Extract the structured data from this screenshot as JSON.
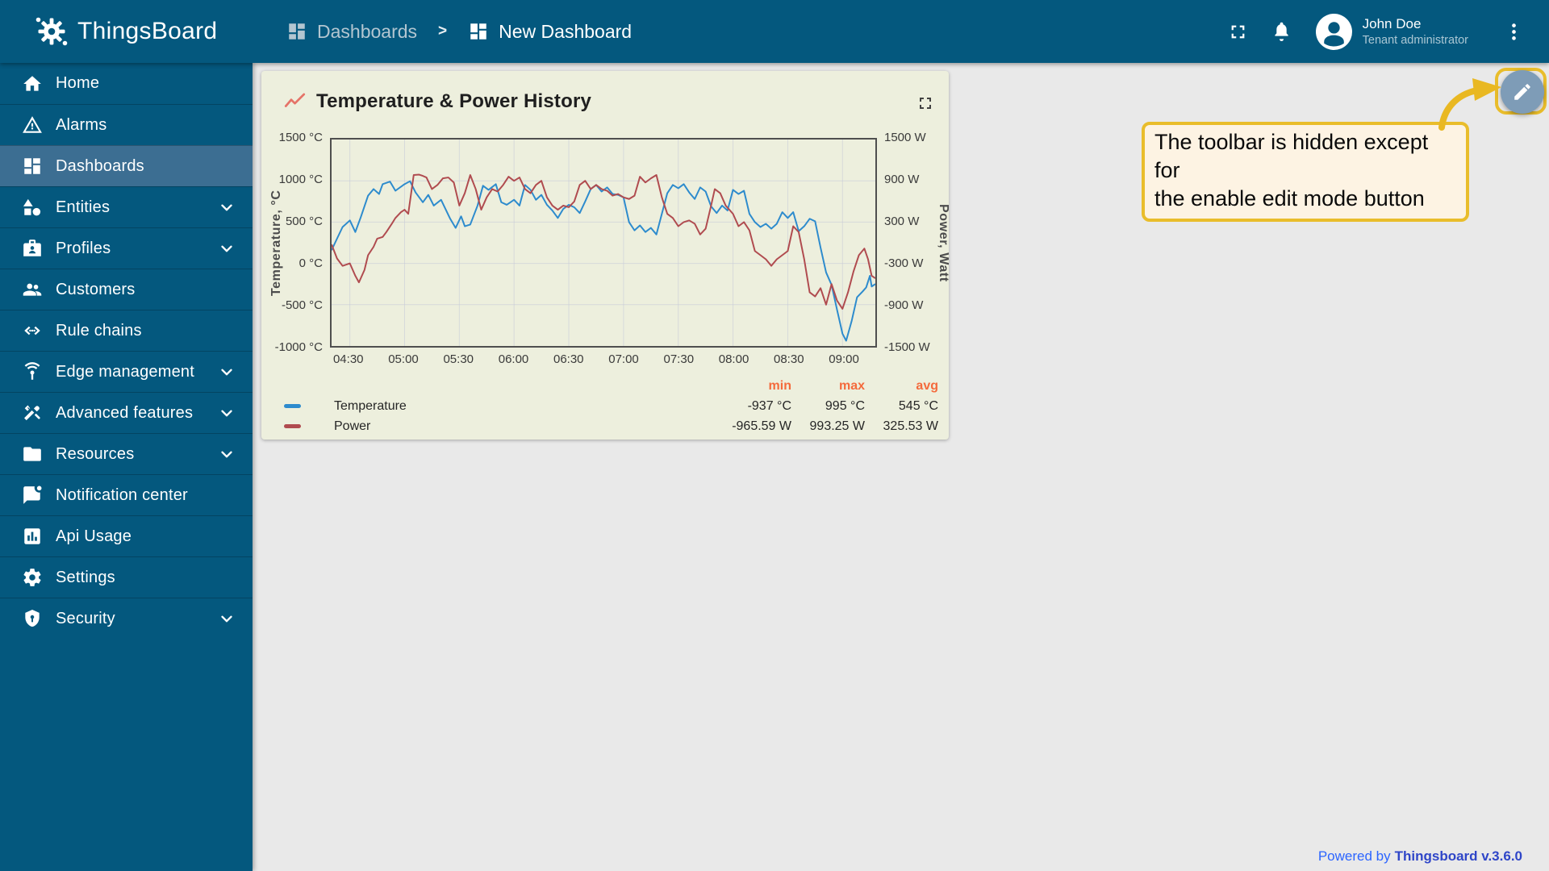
{
  "header": {
    "app_name": "ThingsBoard",
    "breadcrumb": [
      {
        "label": "Dashboards",
        "icon": "dashboards"
      },
      {
        "label": "New Dashboard",
        "icon": "dashboards"
      }
    ],
    "separator": ">",
    "user": {
      "name": "John Doe",
      "role": "Tenant administrator"
    }
  },
  "sidebar": {
    "items": [
      {
        "label": "Home",
        "icon": "home",
        "selected": false,
        "expandable": false
      },
      {
        "label": "Alarms",
        "icon": "alarms",
        "selected": false,
        "expandable": false
      },
      {
        "label": "Dashboards",
        "icon": "dashboards",
        "selected": true,
        "expandable": false
      },
      {
        "label": "Entities",
        "icon": "entities",
        "selected": false,
        "expandable": true
      },
      {
        "label": "Profiles",
        "icon": "profiles",
        "selected": false,
        "expandable": true
      },
      {
        "label": "Customers",
        "icon": "customers",
        "selected": false,
        "expandable": false
      },
      {
        "label": "Rule chains",
        "icon": "rule-chains",
        "selected": false,
        "expandable": false
      },
      {
        "label": "Edge management",
        "icon": "edge-management",
        "selected": false,
        "expandable": true
      },
      {
        "label": "Advanced features",
        "icon": "advanced-features",
        "selected": false,
        "expandable": true
      },
      {
        "label": "Resources",
        "icon": "resources",
        "selected": false,
        "expandable": true
      },
      {
        "label": "Notification center",
        "icon": "notification-center",
        "selected": false,
        "expandable": false
      },
      {
        "label": "Api Usage",
        "icon": "api-usage",
        "selected": false,
        "expandable": false
      },
      {
        "label": "Settings",
        "icon": "settings",
        "selected": false,
        "expandable": false
      },
      {
        "label": "Security",
        "icon": "security",
        "selected": false,
        "expandable": true
      }
    ]
  },
  "widget": {
    "title": "Temperature & Power History",
    "legend": {
      "columns": [
        "min",
        "max",
        "avg"
      ],
      "rows": [
        {
          "label": "Temperature",
          "color": "#2d8bcd",
          "min": "-937 °C",
          "max": "995 °C",
          "avg": "545 °C"
        },
        {
          "label": "Power",
          "color": "#b04b4f",
          "min": "-965.59 W",
          "max": "993.25 W",
          "avg": "325.53 W"
        }
      ]
    }
  },
  "chart_data": {
    "type": "line",
    "title": "Temperature & Power History",
    "time_origin_label": "04:20",
    "x_range_minutes": [
      0,
      298
    ],
    "x_ticks": {
      "minutes": [
        10,
        40,
        70,
        100,
        130,
        160,
        190,
        220,
        250,
        280
      ],
      "labels": [
        "04:30",
        "05:00",
        "05:30",
        "06:00",
        "06:30",
        "07:00",
        "07:30",
        "08:00",
        "08:30",
        "09:00"
      ]
    },
    "axes": {
      "left": {
        "label": "Temperature, °C",
        "range": [
          -1000,
          1500
        ],
        "tick_values": [
          1500,
          1000,
          500,
          0,
          -500,
          -1000
        ],
        "tick_labels": [
          "1500 °C",
          "1000 °C",
          "500 °C",
          "0 °C",
          "-500 °C",
          "-1000 °C"
        ]
      },
      "right": {
        "label": "Power, Watt",
        "range": [
          -1500,
          1500
        ],
        "tick_values": [
          1500,
          900,
          300,
          -300,
          -900,
          -1500
        ],
        "tick_labels": [
          "1500 W",
          "900 W",
          "300 W",
          "-300 W",
          "-900 W",
          "-1500 W"
        ]
      }
    },
    "grid": true,
    "legend_position": "bottom",
    "series": [
      {
        "name": "Temperature",
        "unit": "°C",
        "axis": "left",
        "color": "#2d8bcd",
        "stats": {
          "min": -937,
          "max": 995,
          "avg": 545
        },
        "points": [
          [
            0,
            160
          ],
          [
            3,
            300
          ],
          [
            6,
            440
          ],
          [
            10,
            520
          ],
          [
            13,
            380
          ],
          [
            16,
            560
          ],
          [
            20,
            820
          ],
          [
            23,
            900
          ],
          [
            26,
            840
          ],
          [
            28,
            960
          ],
          [
            32,
            990
          ],
          [
            35,
            880
          ],
          [
            40,
            960
          ],
          [
            43,
            995
          ],
          [
            46,
            860
          ],
          [
            50,
            740
          ],
          [
            53,
            830
          ],
          [
            56,
            700
          ],
          [
            60,
            770
          ],
          [
            65,
            540
          ],
          [
            68,
            430
          ],
          [
            71,
            570
          ],
          [
            73,
            450
          ],
          [
            76,
            470
          ],
          [
            80,
            700
          ],
          [
            83,
            940
          ],
          [
            86,
            890
          ],
          [
            90,
            960
          ],
          [
            93,
            740
          ],
          [
            96,
            710
          ],
          [
            100,
            770
          ],
          [
            103,
            700
          ],
          [
            106,
            950
          ],
          [
            109,
            890
          ],
          [
            112,
            770
          ],
          [
            115,
            830
          ],
          [
            118,
            710
          ],
          [
            121,
            640
          ],
          [
            124,
            550
          ],
          [
            127,
            660
          ],
          [
            130,
            710
          ],
          [
            133,
            680
          ],
          [
            136,
            610
          ],
          [
            139,
            750
          ],
          [
            142,
            900
          ],
          [
            145,
            950
          ],
          [
            148,
            870
          ],
          [
            151,
            920
          ],
          [
            154,
            840
          ],
          [
            157,
            830
          ],
          [
            160,
            800
          ],
          [
            163,
            500
          ],
          [
            166,
            400
          ],
          [
            169,
            460
          ],
          [
            172,
            380
          ],
          [
            175,
            430
          ],
          [
            178,
            350
          ],
          [
            181,
            600
          ],
          [
            184,
            850
          ],
          [
            187,
            950
          ],
          [
            190,
            910
          ],
          [
            193,
            960
          ],
          [
            196,
            860
          ],
          [
            199,
            780
          ],
          [
            202,
            920
          ],
          [
            205,
            870
          ],
          [
            208,
            690
          ],
          [
            211,
            610
          ],
          [
            214,
            700
          ],
          [
            217,
            640
          ],
          [
            220,
            890
          ],
          [
            223,
            840
          ],
          [
            226,
            880
          ],
          [
            229,
            600
          ],
          [
            232,
            500
          ],
          [
            235,
            440
          ],
          [
            238,
            480
          ],
          [
            241,
            420
          ],
          [
            244,
            480
          ],
          [
            247,
            620
          ],
          [
            250,
            550
          ],
          [
            253,
            620
          ],
          [
            256,
            390
          ],
          [
            259,
            450
          ],
          [
            262,
            540
          ],
          [
            265,
            510
          ],
          [
            268,
            190
          ],
          [
            271,
            -110
          ],
          [
            274,
            -260
          ],
          [
            277,
            -560
          ],
          [
            280,
            -850
          ],
          [
            282,
            -937
          ],
          [
            285,
            -700
          ],
          [
            288,
            -410
          ],
          [
            291,
            -340
          ],
          [
            293,
            -290
          ],
          [
            295,
            -150
          ],
          [
            296,
            -280
          ],
          [
            298,
            -250
          ]
        ]
      },
      {
        "name": "Power",
        "unit": "W",
        "axis": "right",
        "color": "#b04b4f",
        "stats": {
          "min": -965.59,
          "max": 993.25,
          "avg": 325.53
        },
        "points": [
          [
            0,
            -24
          ],
          [
            3,
            -228
          ],
          [
            6,
            -336
          ],
          [
            10,
            -300
          ],
          [
            13,
            -480
          ],
          [
            15,
            -576
          ],
          [
            18,
            -396
          ],
          [
            20,
            -180
          ],
          [
            23,
            -60
          ],
          [
            25,
            60
          ],
          [
            28,
            84
          ],
          [
            30,
            156
          ],
          [
            33,
            276
          ],
          [
            35,
            360
          ],
          [
            38,
            444
          ],
          [
            40,
            480
          ],
          [
            42,
            420
          ],
          [
            45,
            984
          ],
          [
            48,
            990
          ],
          [
            50,
            972
          ],
          [
            52,
            948
          ],
          [
            55,
            780
          ],
          [
            58,
            840
          ],
          [
            61,
            936
          ],
          [
            64,
            948
          ],
          [
            67,
            876
          ],
          [
            70,
            540
          ],
          [
            73,
            720
          ],
          [
            76,
            984
          ],
          [
            79,
            780
          ],
          [
            82,
            480
          ],
          [
            85,
            660
          ],
          [
            88,
            780
          ],
          [
            91,
            744
          ],
          [
            94,
            840
          ],
          [
            97,
            960
          ],
          [
            100,
            900
          ],
          [
            103,
            948
          ],
          [
            106,
            780
          ],
          [
            109,
            720
          ],
          [
            112,
            840
          ],
          [
            115,
            900
          ],
          [
            118,
            660
          ],
          [
            121,
            540
          ],
          [
            124,
            480
          ],
          [
            127,
            540
          ],
          [
            130,
            516
          ],
          [
            133,
            600
          ],
          [
            136,
            840
          ],
          [
            139,
            900
          ],
          [
            142,
            780
          ],
          [
            145,
            840
          ],
          [
            148,
            780
          ],
          [
            151,
            756
          ],
          [
            154,
            684
          ],
          [
            157,
            708
          ],
          [
            160,
            660
          ],
          [
            163,
            636
          ],
          [
            166,
            684
          ],
          [
            169,
            960
          ],
          [
            172,
            876
          ],
          [
            175,
            936
          ],
          [
            178,
            984
          ],
          [
            181,
            660
          ],
          [
            184,
            420
          ],
          [
            187,
            360
          ],
          [
            190,
            240
          ],
          [
            193,
            300
          ],
          [
            196,
            324
          ],
          [
            199,
            276
          ],
          [
            202,
            120
          ],
          [
            205,
            204
          ],
          [
            208,
            540
          ],
          [
            210,
            780
          ],
          [
            213,
            720
          ],
          [
            216,
            540
          ],
          [
            220,
            420
          ],
          [
            223,
            240
          ],
          [
            226,
            300
          ],
          [
            229,
            180
          ],
          [
            232,
            -120
          ],
          [
            235,
            -180
          ],
          [
            238,
            -240
          ],
          [
            241,
            -336
          ],
          [
            244,
            -240
          ],
          [
            247,
            -180
          ],
          [
            250,
            -120
          ],
          [
            253,
            240
          ],
          [
            256,
            156
          ],
          [
            259,
            -240
          ],
          [
            262,
            -720
          ],
          [
            265,
            -780
          ],
          [
            268,
            -660
          ],
          [
            271,
            -900
          ],
          [
            274,
            -600
          ],
          [
            277,
            -840
          ],
          [
            280,
            -960
          ],
          [
            283,
            -720
          ],
          [
            286,
            -420
          ],
          [
            289,
            -180
          ],
          [
            292,
            -84
          ],
          [
            294,
            -240
          ],
          [
            296,
            -480
          ],
          [
            298,
            -516
          ]
        ]
      }
    ]
  },
  "callout": {
    "lines": [
      "The toolbar is hidden except for",
      "the enable edit mode button"
    ],
    "background": "#fdf3e3",
    "border_color": "#e9bd2b"
  },
  "footer": {
    "powered_by": "Powered by",
    "brand_version": "Thingsboard v.3.6.0"
  },
  "colors": {
    "primary": "#04587e",
    "sidebar_selected": "#3c6e92",
    "main_background": "#e9e9e9",
    "widget_background": "#edefdd",
    "legend_header": "#f46a3c",
    "temperature_series": "#2d8bcd",
    "power_series": "#b04b4f",
    "edit_button": "#7e9cb7",
    "annotation_yellow": "#e9bd2b",
    "link_blue": "#2c65ff"
  }
}
